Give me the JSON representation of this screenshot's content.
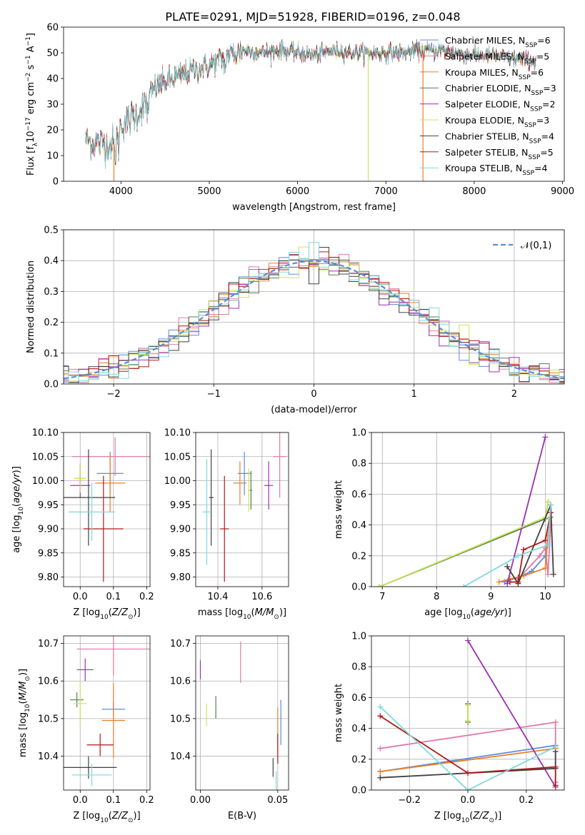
{
  "figure_title": "PLATE=0291, MJD=51928, FIBERID=0196, z=0.048",
  "colors": {
    "Chabrier MILES": "#5b8bd9",
    "Salpeter MILES": "#e07aa8",
    "Kroupa MILES": "#e8802a",
    "Chabrier ELODIE": "#5a7a55",
    "Salpeter ELODIE": "#9b30b0",
    "Kroupa ELODIE": "#c9e55a",
    "Chabrier STELIB": "#404040",
    "Salpeter STELIB": "#b01818",
    "Kroupa STELIB": "#7fd8dc"
  },
  "chart_data": [
    {
      "id": "spectrum",
      "type": "line",
      "title": "PLATE=0291, MJD=51928, FIBERID=0196, z=0.048",
      "xlabel": "wavelength [Angstrom, rest frame]",
      "ylabel": "Flux [f_λ 10^-17 erg cm^-2 s^-1 A^-1]",
      "xlim": [
        3350,
        9020
      ],
      "ylim": [
        0,
        60
      ],
      "xticks": [
        4000,
        5000,
        6000,
        7000,
        8000,
        9000
      ],
      "yticks": [
        0,
        10,
        20,
        30,
        40,
        50,
        60
      ],
      "grid": false,
      "legend_position": "right",
      "continuum": {
        "x": [
          3600,
          3700,
          3800,
          3900,
          4000,
          4100,
          4200,
          4300,
          4400,
          4600,
          4800,
          5000,
          5200,
          5400,
          5600,
          5800,
          6000,
          6200,
          6400,
          6600,
          6800,
          7000,
          7200,
          7400,
          7600,
          7800,
          8000,
          8200,
          8400,
          8600,
          8700
        ],
        "y": [
          16,
          15,
          15,
          14,
          22,
          24,
          27,
          31,
          37,
          40,
          43,
          45,
          49,
          51,
          50,
          51,
          50,
          49,
          51,
          50,
          50,
          50,
          50,
          51,
          51,
          50,
          49,
          49,
          48,
          47,
          47
        ]
      },
      "glitches": [
        {
          "x": 3920,
          "series": "Kroupa MILES"
        },
        {
          "x": 6800,
          "series": "Kroupa ELODIE"
        },
        {
          "x": 7420,
          "series": "Kroupa MILES"
        }
      ],
      "legend": [
        {
          "name": "Chabrier MILES",
          "nssp": "6"
        },
        {
          "name": "Salpeter MILES",
          "nssp": "5"
        },
        {
          "name": "Kroupa MILES",
          "nssp": "6"
        },
        {
          "name": "Chabrier ELODIE",
          "nssp": "3"
        },
        {
          "name": "Salpeter ELODIE",
          "nssp": "2"
        },
        {
          "name": "Kroupa ELODIE",
          "nssp": "3"
        },
        {
          "name": "Chabrier STELIB",
          "nssp": "4"
        },
        {
          "name": "Salpeter STELIB",
          "nssp": "5"
        },
        {
          "name": "Kroupa STELIB",
          "nssp": "4"
        }
      ]
    },
    {
      "id": "residuals",
      "type": "line",
      "xlabel": "(data-model)/error",
      "ylabel": "Normed distribution",
      "xlim": [
        -2.5,
        2.5
      ],
      "ylim": [
        0,
        0.5
      ],
      "xticks": [
        -2,
        -1,
        0,
        1,
        2
      ],
      "yticks": [
        0.0,
        0.1,
        0.2,
        0.3,
        0.4,
        0.5
      ],
      "grid": true,
      "legend_position": "top-right",
      "gaussian_label": "𝒩(0,1)",
      "bin_width": 0.1
    },
    {
      "id": "age_vs_Z",
      "type": "scatter",
      "xlabel": "Z [log10(Z/Z⊙)]",
      "ylabel": "age [log10(age/yr)]",
      "xlim": [
        -0.05,
        0.21
      ],
      "ylim": [
        9.78,
        10.1
      ],
      "xticks": [
        0.0,
        0.1,
        0.2
      ],
      "yticks": [
        9.8,
        9.85,
        9.9,
        9.95,
        10.0,
        10.05,
        10.1
      ],
      "grid": true,
      "points": [
        {
          "series": "Chabrier MILES",
          "x": 0.09,
          "y": 10.015,
          "xerr": 0.04,
          "yerr": 0.045
        },
        {
          "series": "Salpeter MILES",
          "x": 0.105,
          "y": 10.05,
          "xerr": 0.13,
          "yerr": 0.04
        },
        {
          "series": "Kroupa MILES",
          "x": 0.09,
          "y": 9.995,
          "xerr": 0.045,
          "yerr": 0.06
        },
        {
          "series": "Chabrier ELODIE",
          "x": 0.0,
          "y": 10.005,
          "xerr": 0.01,
          "yerr": 0.03
        },
        {
          "series": "Salpeter ELODIE",
          "x": 0.0,
          "y": 9.99,
          "xerr": 0.03,
          "yerr": 0.025
        },
        {
          "series": "Kroupa ELODIE",
          "x": 0.0,
          "y": 10.005,
          "xerr": 0.02,
          "yerr": 0.03
        },
        {
          "series": "Chabrier STELIB",
          "x": 0.025,
          "y": 9.965,
          "xerr": 0.08,
          "yerr": 0.1
        },
        {
          "series": "Salpeter STELIB",
          "x": 0.07,
          "y": 9.9,
          "xerr": 0.06,
          "yerr": 0.11
        },
        {
          "series": "Kroupa STELIB",
          "x": 0.035,
          "y": 9.935,
          "xerr": 0.07,
          "yerr": 0.06
        }
      ]
    },
    {
      "id": "age_vs_mass",
      "type": "scatter",
      "xlabel": "mass [log10(M/M⊙)]",
      "xlim": [
        10.3,
        10.72
      ],
      "ylim": [
        9.78,
        10.1
      ],
      "xticks": [
        10.4,
        10.6
      ],
      "yticks": [
        9.8,
        9.85,
        9.9,
        9.95,
        10.0,
        10.05,
        10.1
      ],
      "grid": true,
      "points": [
        {
          "series": "Chabrier MILES",
          "x": 10.52,
          "y": 10.015,
          "xerr": 0.03,
          "yerr": 0.045
        },
        {
          "series": "Salpeter MILES",
          "x": 10.68,
          "y": 10.05,
          "xerr": 0.03,
          "yerr": 0.085
        },
        {
          "series": "Kroupa MILES",
          "x": 10.5,
          "y": 9.995,
          "xerr": 0.03,
          "yerr": 0.045
        },
        {
          "series": "Chabrier ELODIE",
          "x": 10.55,
          "y": 9.98,
          "xerr": 0.005,
          "yerr": 0.04
        },
        {
          "series": "Salpeter ELODIE",
          "x": 10.63,
          "y": 9.99,
          "xerr": 0.02,
          "yerr": 0.05
        },
        {
          "series": "Kroupa ELODIE",
          "x": 10.54,
          "y": 9.98,
          "xerr": 0.005,
          "yerr": 0.045
        },
        {
          "series": "Chabrier STELIB",
          "x": 10.37,
          "y": 9.965,
          "xerr": 0.01,
          "yerr": 0.1
        },
        {
          "series": "Salpeter STELIB",
          "x": 10.43,
          "y": 9.9,
          "xerr": 0.02,
          "yerr": 0.11
        },
        {
          "series": "Kroupa STELIB",
          "x": 10.35,
          "y": 9.935,
          "xerr": 0.02,
          "yerr": 0.11
        }
      ]
    },
    {
      "id": "mw_vs_age",
      "type": "line",
      "xlabel": "age [log10(age/yr)]",
      "ylabel": "mass weight",
      "xlim": [
        6.8,
        10.35
      ],
      "ylim": [
        0,
        1.0
      ],
      "xticks": [
        7,
        8,
        9,
        10
      ],
      "yticks": [
        0.0,
        0.2,
        0.4,
        0.6,
        0.8,
        1.0
      ],
      "grid": true,
      "series": [
        {
          "name": "Chabrier MILES",
          "x": [
            9.25,
            9.5,
            9.75,
            10.0,
            10.1
          ],
          "y": [
            0.03,
            0.06,
            0.1,
            0.2,
            0.45
          ]
        },
        {
          "name": "Salpeter MILES",
          "x": [
            9.5,
            9.9,
            10.0,
            10.05,
            10.1
          ],
          "y": [
            0.05,
            0.2,
            0.25,
            0.08,
            0.4
          ]
        },
        {
          "name": "Kroupa MILES",
          "x": [
            9.15,
            9.35,
            9.6,
            10.0,
            10.05,
            10.1
          ],
          "y": [
            0.03,
            0.05,
            0.07,
            0.12,
            0.33,
            0.45
          ]
        },
        {
          "name": "Chabrier ELODIE",
          "x": [
            6.95,
            10.0,
            10.05
          ],
          "y": [
            0.0,
            0.44,
            0.55
          ]
        },
        {
          "name": "Salpeter ELODIE",
          "x": [
            9.3,
            10.0
          ],
          "y": [
            0.02,
            0.97
          ]
        },
        {
          "name": "Kroupa ELODIE",
          "x": [
            6.95,
            10.0,
            10.05
          ],
          "y": [
            0.0,
            0.45,
            0.55
          ]
        },
        {
          "name": "Chabrier STELIB",
          "x": [
            9.3,
            9.5,
            10.1,
            10.15
          ],
          "y": [
            0.13,
            0.02,
            0.53,
            0.08
          ]
        },
        {
          "name": "Salpeter STELIB",
          "x": [
            9.35,
            9.5,
            9.6,
            10.0,
            10.1
          ],
          "y": [
            0.03,
            0.03,
            0.24,
            0.3,
            0.48
          ]
        },
        {
          "name": "Kroupa STELIB",
          "x": [
            8.5,
            9.5,
            10.05,
            10.1
          ],
          "y": [
            0.0,
            0.2,
            0.27,
            0.53
          ]
        }
      ]
    },
    {
      "id": "mass_vs_Z",
      "type": "scatter",
      "xlabel": "Z [log10(Z/Z⊙)]",
      "ylabel": "mass [log10(M/M⊙)]",
      "xlim": [
        -0.05,
        0.21
      ],
      "ylim": [
        10.31,
        10.72
      ],
      "xticks": [
        0.0,
        0.1,
        0.2
      ],
      "yticks": [
        10.4,
        10.5,
        10.6,
        10.7
      ],
      "grid": true,
      "points": [
        {
          "series": "Chabrier MILES",
          "x": 0.1,
          "y": 10.525,
          "xerr": 0.035,
          "yerr": 0.02
        },
        {
          "series": "Salpeter MILES",
          "x": 0.1,
          "y": 10.685,
          "xerr": 0.11,
          "yerr": 0.07
        },
        {
          "series": "Kroupa MILES",
          "x": 0.1,
          "y": 10.495,
          "xerr": 0.035,
          "yerr": 0.1
        },
        {
          "series": "Chabrier ELODIE",
          "x": -0.01,
          "y": 10.55,
          "xerr": 0.02,
          "yerr": 0.02
        },
        {
          "series": "Salpeter ELODIE",
          "x": 0.015,
          "y": 10.63,
          "xerr": 0.025,
          "yerr": 0.03
        },
        {
          "series": "Kroupa ELODIE",
          "x": 0.0,
          "y": 10.54,
          "xerr": 0.02,
          "yerr": 0.06
        },
        {
          "series": "Chabrier STELIB",
          "x": 0.025,
          "y": 10.37,
          "xerr": 0.085,
          "yerr": 0.03
        },
        {
          "series": "Salpeter STELIB",
          "x": 0.06,
          "y": 10.43,
          "xerr": 0.04,
          "yerr": 0.03
        },
        {
          "series": "Kroupa STELIB",
          "x": 0.035,
          "y": 10.35,
          "xerr": 0.06,
          "yerr": 0.03
        }
      ]
    },
    {
      "id": "mass_vs_ebv",
      "type": "scatter",
      "xlabel": "E(B-V)",
      "xlim": [
        -0.003,
        0.057
      ],
      "ylim": [
        10.31,
        10.72
      ],
      "xticks": [
        0.0,
        0.05
      ],
      "yticks": [
        10.4,
        10.5,
        10.6,
        10.7
      ],
      "grid": true,
      "points": [
        {
          "series": "Chabrier MILES",
          "x": 0.052,
          "y": 10.49,
          "xerr": 0.0,
          "yerr": 0.06
        },
        {
          "series": "Salpeter MILES",
          "x": 0.026,
          "y": 10.65,
          "xerr": 0.0,
          "yerr": 0.055
        },
        {
          "series": "Kroupa MILES",
          "x": 0.05,
          "y": 10.47,
          "xerr": 0.0,
          "yerr": 0.06
        },
        {
          "series": "Chabrier ELODIE",
          "x": 0.01,
          "y": 10.53,
          "xerr": 0.0,
          "yerr": 0.03
        },
        {
          "series": "Salpeter ELODIE",
          "x": 0.0,
          "y": 10.63,
          "xerr": 0.0,
          "yerr": 0.025
        },
        {
          "series": "Kroupa ELODIE",
          "x": 0.004,
          "y": 10.51,
          "xerr": 0.0,
          "yerr": 0.03
        },
        {
          "series": "Chabrier STELIB",
          "x": 0.047,
          "y": 10.37,
          "xerr": 0.0,
          "yerr": 0.025
        },
        {
          "series": "Salpeter STELIB",
          "x": 0.05,
          "y": 10.42,
          "xerr": 0.0,
          "yerr": 0.04
        },
        {
          "series": "Kroupa STELIB",
          "x": 0.049,
          "y": 10.33,
          "xerr": 0.0,
          "yerr": 0.03
        }
      ]
    },
    {
      "id": "mw_vs_Z",
      "type": "line",
      "xlabel": "Z [log10(Z/Z⊙)]",
      "ylabel": "mass weight",
      "xlim": [
        -0.33,
        0.33
      ],
      "ylim": [
        0,
        1.0
      ],
      "xticks": [
        -0.2,
        0.0,
        0.2
      ],
      "yticks": [
        0.0,
        0.2,
        0.4,
        0.6,
        0.8,
        1.0
      ],
      "grid": true,
      "series": [
        {
          "name": "Chabrier MILES",
          "x": [
            -0.3,
            0.3
          ],
          "y": [
            0.12,
            0.29
          ]
        },
        {
          "name": "Salpeter MILES",
          "x": [
            -0.3,
            0.3,
            0.3
          ],
          "y": [
            0.27,
            0.44,
            0.05
          ]
        },
        {
          "name": "Kroupa MILES",
          "x": [
            -0.3,
            0.3
          ],
          "y": [
            0.12,
            0.27
          ]
        },
        {
          "name": "Chabrier ELODIE",
          "x": [
            0.0,
            0.0
          ],
          "y": [
            0.44,
            0.56
          ]
        },
        {
          "name": "Salpeter ELODIE",
          "x": [
            0.0,
            0.3
          ],
          "y": [
            0.97,
            0.02
          ]
        },
        {
          "name": "Kroupa ELODIE",
          "x": [
            0.0,
            0.0
          ],
          "y": [
            0.45,
            0.55
          ]
        },
        {
          "name": "Chabrier STELIB",
          "x": [
            -0.3,
            0.3,
            0.3
          ],
          "y": [
            0.08,
            0.14,
            0.25
          ]
        },
        {
          "name": "Salpeter STELIB",
          "x": [
            -0.3,
            0.0,
            0.3,
            0.3
          ],
          "y": [
            0.48,
            0.11,
            0.15,
            0.03
          ]
        },
        {
          "name": "Kroupa STELIB",
          "x": [
            -0.3,
            0.0,
            0.3
          ],
          "y": [
            0.54,
            0.0,
            0.28
          ]
        }
      ]
    }
  ]
}
